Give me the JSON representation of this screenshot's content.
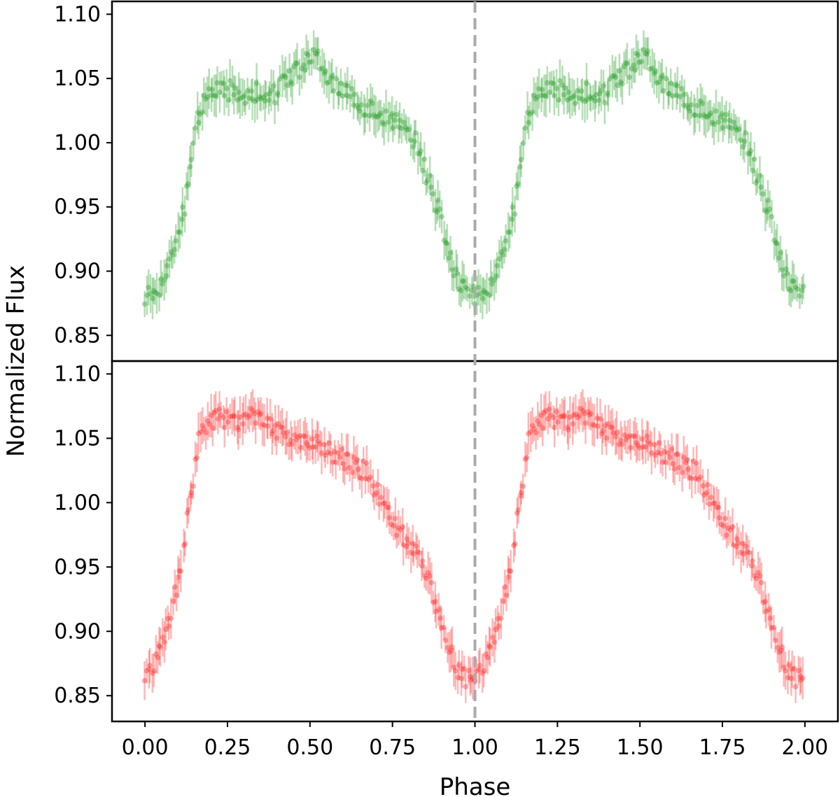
{
  "chart_data": {
    "type": "scatter",
    "xlabel": "Phase",
    "ylabel": "Normalized Flux",
    "xlim": [
      -0.1,
      2.1
    ],
    "xticks": [
      "0.00",
      "0.25",
      "0.50",
      "0.75",
      "1.00",
      "1.25",
      "1.50",
      "1.75",
      "2.00"
    ],
    "xtick_values": [
      0.0,
      0.25,
      0.5,
      0.75,
      1.0,
      1.25,
      1.5,
      1.75,
      2.0
    ],
    "yticks": [
      "0.85",
      "0.90",
      "0.95",
      "1.00",
      "1.05",
      "1.10"
    ],
    "ytick_values": [
      0.85,
      0.9,
      0.95,
      1.0,
      1.05,
      1.1
    ],
    "vline": {
      "x": 1.0,
      "color": "#aaaaaa",
      "style": "dashed"
    },
    "error_bar_typical": 0.013,
    "panels": [
      {
        "position": "top",
        "color": "#2ca02c",
        "ylim": [
          0.83,
          1.11
        ],
        "phase_values": [
          0.0,
          0.02,
          0.04,
          0.06,
          0.08,
          0.1,
          0.12,
          0.14,
          0.16,
          0.18,
          0.2,
          0.22,
          0.24,
          0.26,
          0.28,
          0.3,
          0.32,
          0.34,
          0.36,
          0.38,
          0.4,
          0.42,
          0.44,
          0.46,
          0.48,
          0.5,
          0.52,
          0.54,
          0.56,
          0.58,
          0.6,
          0.62,
          0.64,
          0.66,
          0.68,
          0.7,
          0.72,
          0.74,
          0.76,
          0.78,
          0.8,
          0.82,
          0.84,
          0.86,
          0.88,
          0.9,
          0.92,
          0.94,
          0.96,
          0.98,
          1.0
        ],
        "flux_values": [
          0.88,
          0.883,
          0.887,
          0.9,
          0.912,
          0.928,
          0.95,
          0.985,
          1.02,
          1.035,
          1.038,
          1.04,
          1.042,
          1.04,
          1.035,
          1.035,
          1.038,
          1.04,
          1.036,
          1.033,
          1.04,
          1.048,
          1.05,
          1.055,
          1.06,
          1.065,
          1.065,
          1.058,
          1.05,
          1.045,
          1.04,
          1.035,
          1.033,
          1.03,
          1.028,
          1.025,
          1.02,
          1.018,
          1.015,
          1.012,
          1.008,
          1.0,
          0.985,
          0.97,
          0.955,
          0.935,
          0.915,
          0.9,
          0.89,
          0.884,
          0.88
        ]
      },
      {
        "position": "bottom",
        "color": "#ff3030",
        "ylim": [
          0.83,
          1.11
        ],
        "phase_values": [
          0.0,
          0.02,
          0.04,
          0.06,
          0.08,
          0.1,
          0.12,
          0.14,
          0.16,
          0.18,
          0.2,
          0.22,
          0.24,
          0.26,
          0.28,
          0.3,
          0.32,
          0.34,
          0.36,
          0.38,
          0.4,
          0.42,
          0.44,
          0.46,
          0.48,
          0.5,
          0.52,
          0.54,
          0.56,
          0.58,
          0.6,
          0.62,
          0.64,
          0.66,
          0.68,
          0.7,
          0.72,
          0.74,
          0.76,
          0.78,
          0.8,
          0.82,
          0.84,
          0.86,
          0.88,
          0.9,
          0.92,
          0.94,
          0.96,
          0.98,
          1.0
        ],
        "flux_values": [
          0.865,
          0.872,
          0.88,
          0.895,
          0.915,
          0.94,
          0.968,
          1.01,
          1.045,
          1.06,
          1.062,
          1.064,
          1.066,
          1.063,
          1.06,
          1.062,
          1.066,
          1.068,
          1.064,
          1.06,
          1.055,
          1.052,
          1.05,
          1.05,
          1.048,
          1.046,
          1.044,
          1.042,
          1.04,
          1.037,
          1.033,
          1.03,
          1.028,
          1.026,
          1.022,
          1.01,
          0.998,
          0.99,
          0.982,
          0.975,
          0.968,
          0.96,
          0.95,
          0.938,
          0.92,
          0.905,
          0.888,
          0.875,
          0.866,
          0.862,
          0.865
        ]
      }
    ]
  }
}
